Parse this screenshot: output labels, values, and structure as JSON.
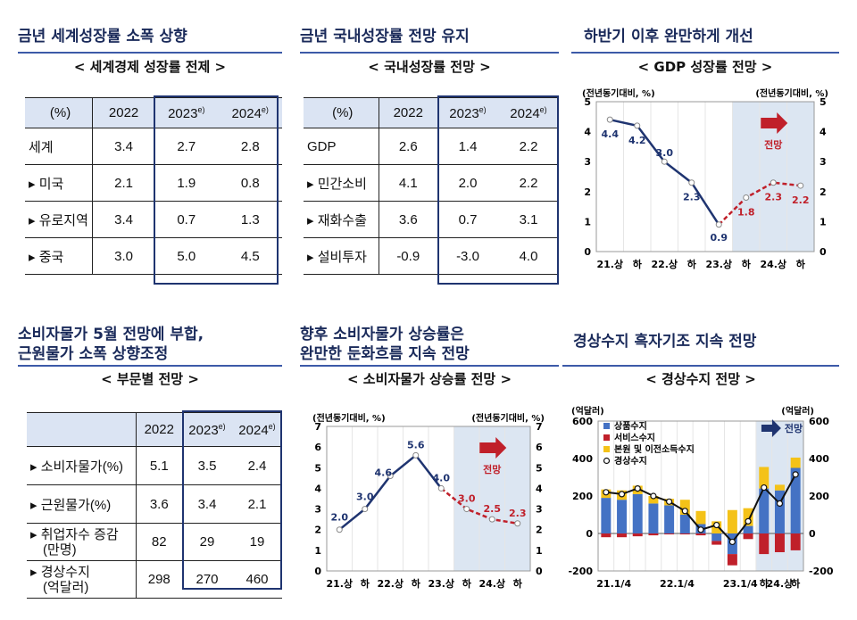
{
  "panels": {
    "p1": {
      "title": "금년 세계성장률 소폭 상향",
      "subtitle": "< 세계경제 성장률 전제 >"
    },
    "p2": {
      "title": "금년 국내성장률 전망 유지",
      "subtitle": "< 국내성장률 전망 >"
    },
    "p3": {
      "title": "하반기 이후 완만하게 개선",
      "subtitle": "< GDP 성장률 전망 >"
    },
    "p4": {
      "title_line1": "소비자물가 5월 전망에 부합,",
      "title_line2": "근원물가 소폭 상향조정",
      "subtitle": "< 부문별 전망 >"
    },
    "p5": {
      "title_line1": "향후 소비자물가 상승률은",
      "title_line2": "완만한 둔화흐름 지속 전망",
      "subtitle": "< 소비자물가 상승률 전망 >"
    },
    "p6": {
      "title": "경상수지 흑자기조 지속 전망",
      "subtitle": "< 경상수지 전망 >"
    }
  },
  "tables": {
    "world": {
      "headers": [
        "(%)",
        "2022",
        "2023",
        "2024"
      ],
      "sup": "e)",
      "rows": [
        {
          "label": "세계",
          "v": [
            "3.4",
            "2.7",
            "2.8"
          ]
        },
        {
          "label": "▸ 미국",
          "v": [
            "2.1",
            "1.9",
            "0.8"
          ]
        },
        {
          "label": "▸ 유로지역",
          "v": [
            "3.4",
            "0.7",
            "1.3"
          ]
        },
        {
          "label": "▸ 중국",
          "v": [
            "3.0",
            "5.0",
            "4.5"
          ]
        }
      ]
    },
    "domestic": {
      "headers": [
        "(%)",
        "2022",
        "2023",
        "2024"
      ],
      "sup": "e)",
      "rows": [
        {
          "label": "GDP",
          "v": [
            "2.6",
            "1.4",
            "2.2"
          ]
        },
        {
          "label": "▸ 민간소비",
          "v": [
            "4.1",
            "2.0",
            "2.2"
          ]
        },
        {
          "label": "▸ 재화수출",
          "v": [
            "3.6",
            "0.7",
            "3.1"
          ]
        },
        {
          "label": "▸ 설비투자",
          "v": [
            "-0.9",
            "-3.0",
            "4.0"
          ]
        }
      ]
    },
    "sector": {
      "headers": [
        "",
        "2022",
        "2023",
        "2024"
      ],
      "sup": "e)",
      "rows": [
        {
          "label": "▸ 소비자물가(%)",
          "v": [
            "5.1",
            "3.5",
            "2.4"
          ]
        },
        {
          "label": "▸ 근원물가(%)",
          "v": [
            "3.6",
            "3.4",
            "2.1"
          ]
        },
        {
          "label": "▸ 취업자수 증감",
          "label2": "(만명)",
          "v": [
            "82",
            "29",
            "19"
          ]
        },
        {
          "label": "▸ 경상수지",
          "label2": "(억달러)",
          "v": [
            "298",
            "270",
            "460"
          ]
        }
      ]
    }
  },
  "chart_data": [
    {
      "type": "line",
      "title": "GDP 성장률 전망",
      "ylabel_left": "(전년동기대비, %)",
      "ylabel_right": "(전년동기대비, %)",
      "categories": [
        "21.상",
        "하",
        "22.상",
        "하",
        "23.상",
        "하",
        "24.상",
        "하"
      ],
      "ylim": [
        0,
        5
      ],
      "yticks": [
        0,
        1,
        2,
        3,
        4,
        5
      ],
      "actual": [
        4.4,
        4.2,
        3.0,
        2.3,
        0.9
      ],
      "forecast": [
        0.9,
        1.8,
        2.3,
        2.2
      ],
      "forecast_start_index": 4,
      "forecast_label": "전망",
      "colors": {
        "actual": "#1f3470",
        "forecast": "#c0202a",
        "shade": "#dce6f2"
      }
    },
    {
      "type": "line",
      "title": "소비자물가 상승률 전망",
      "ylabel_left": "(전년동기대비, %)",
      "ylabel_right": "(전년동기대비, %)",
      "categories": [
        "21.상",
        "하",
        "22.상",
        "하",
        "23.상",
        "하",
        "24.상",
        "하"
      ],
      "ylim": [
        0,
        7
      ],
      "yticks": [
        0,
        1,
        2,
        3,
        4,
        5,
        6,
        7
      ],
      "actual": [
        2.0,
        3.0,
        4.6,
        5.6,
        4.0
      ],
      "forecast": [
        4.0,
        3.0,
        2.5,
        2.3
      ],
      "forecast_start_index": 4,
      "forecast_label": "전망",
      "colors": {
        "actual": "#1f3470",
        "forecast": "#c0202a",
        "shade": "#dce6f2"
      }
    },
    {
      "type": "bar",
      "title": "경상수지 전망",
      "ylabel_left": "(억달러)",
      "ylabel_right": "(억달러)",
      "x_ticks": [
        "21.1/4",
        "22.1/4",
        "23.1/4",
        "하",
        "24.상",
        "하"
      ],
      "ylim": [
        -200,
        600
      ],
      "yticks": [
        -200,
        0,
        200,
        400,
        600
      ],
      "categories": [
        "21Q1",
        "21Q2",
        "21Q3",
        "21Q4",
        "22Q1",
        "22Q2",
        "22Q3",
        "22Q4",
        "23Q1",
        "23Q2",
        "23.하",
        "24.상",
        "24.하"
      ],
      "series": [
        {
          "name": "상품수지",
          "color": "#4472c4",
          "values": [
            190,
            180,
            210,
            160,
            150,
            100,
            50,
            -40,
            -110,
            40,
            240,
            230,
            350
          ]
        },
        {
          "name": "서비스수지",
          "color": "#c0202a",
          "values": [
            -20,
            -20,
            -15,
            -10,
            -5,
            -5,
            -10,
            -20,
            -60,
            -30,
            -110,
            -100,
            -90
          ]
        },
        {
          "name": "본원 및 이전소득수지",
          "color": "#f4c218",
          "values": [
            45,
            50,
            45,
            40,
            35,
            80,
            70,
            65,
            125,
            95,
            115,
            30,
            55
          ]
        },
        {
          "name": "경상수지",
          "color": "#111111",
          "type": "line",
          "values": [
            220,
            210,
            240,
            200,
            170,
            120,
            20,
            45,
            -45,
            65,
            245,
            160,
            315
          ]
        }
      ],
      "forecast_label": "전망"
    }
  ]
}
